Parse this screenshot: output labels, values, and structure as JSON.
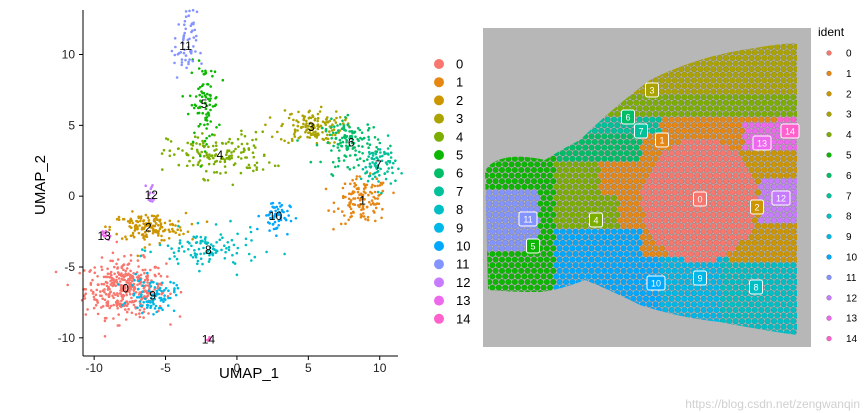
{
  "chart_data": [
    {
      "type": "scatter",
      "xlabel": "UMAP_1",
      "ylabel": "UMAP_2",
      "xlim": [
        -10.5,
        11
      ],
      "ylim": [
        -11,
        13
      ],
      "xticks": [
        "-10",
        "-5",
        "0",
        "5",
        "10"
      ],
      "yticks": [
        "-10",
        "-5",
        "0",
        "5",
        "10"
      ],
      "legend_position": "right",
      "clusters": [
        {
          "name": "0",
          "color": "#F8766D",
          "center": [
            -7.8,
            -6.5
          ],
          "spread": [
            1.4,
            1.0
          ],
          "n": 380
        },
        {
          "name": "1",
          "color": "#E68613",
          "center": [
            8.8,
            -0.3
          ],
          "spread": [
            0.9,
            0.8
          ],
          "n": 130
        },
        {
          "name": "2",
          "color": "#CD9600",
          "center": [
            -6.2,
            -2.2
          ],
          "spread": [
            1.3,
            0.5
          ],
          "n": 150
        },
        {
          "name": "3",
          "color": "#ABA300",
          "center": [
            5.2,
            4.9
          ],
          "spread": [
            1.1,
            0.6
          ],
          "n": 140
        },
        {
          "name": "4",
          "color": "#7CAE00",
          "center": [
            -1.2,
            2.9
          ],
          "spread": [
            1.8,
            0.8
          ],
          "n": 150
        },
        {
          "name": "5",
          "color": "#0CB702",
          "center": [
            -2.3,
            6.5
          ],
          "spread": [
            0.5,
            1.4
          ],
          "n": 90
        },
        {
          "name": "6",
          "color": "#00BE67",
          "center": [
            8.0,
            3.8
          ],
          "spread": [
            1.0,
            0.8
          ],
          "n": 130
        },
        {
          "name": "7",
          "color": "#00C19A",
          "center": [
            9.9,
            2.2
          ],
          "spread": [
            0.6,
            0.8
          ],
          "n": 80
        },
        {
          "name": "8",
          "color": "#00BFC4",
          "center": [
            -2.0,
            -3.8
          ],
          "spread": [
            1.8,
            0.7
          ],
          "n": 110
        },
        {
          "name": "9",
          "color": "#00B8E7",
          "center": [
            -5.9,
            -7.0
          ],
          "spread": [
            0.8,
            0.6
          ],
          "n": 90
        },
        {
          "name": "10",
          "color": "#00A9FF",
          "center": [
            2.7,
            -1.4
          ],
          "spread": [
            0.5,
            0.6
          ],
          "n": 60
        },
        {
          "name": "11",
          "color": "#8494FF",
          "center": [
            -3.6,
            10.6
          ],
          "spread": [
            0.4,
            1.2
          ],
          "n": 60
        },
        {
          "name": "12",
          "color": "#C77CFF",
          "center": [
            -6.0,
            0.1
          ],
          "spread": [
            0.15,
            0.4
          ],
          "n": 14
        },
        {
          "name": "13",
          "color": "#ED68ED",
          "center": [
            -9.3,
            -2.8
          ],
          "spread": [
            0.2,
            0.2
          ],
          "n": 10
        },
        {
          "name": "14",
          "color": "#FF61CC",
          "center": [
            -2.0,
            -10.1
          ],
          "spread": [
            0.1,
            0.1
          ],
          "n": 5
        }
      ]
    },
    {
      "type": "spatial",
      "legend_title": "ident",
      "legend_position": "right",
      "categories": [
        "0",
        "1",
        "2",
        "3",
        "4",
        "5",
        "6",
        "7",
        "8",
        "9",
        "10",
        "11",
        "12",
        "13",
        "14"
      ],
      "colors": [
        "#F8766D",
        "#E68613",
        "#CD9600",
        "#ABA300",
        "#7CAE00",
        "#0CB702",
        "#00BE67",
        "#00C19A",
        "#00BFC4",
        "#00B8E7",
        "#00A9FF",
        "#8494FF",
        "#C77CFF",
        "#ED68ED",
        "#FF61CC"
      ]
    }
  ],
  "left_legend": {
    "labels": [
      "0",
      "1",
      "2",
      "3",
      "4",
      "5",
      "6",
      "7",
      "8",
      "9",
      "10",
      "11",
      "12",
      "13",
      "14"
    ]
  },
  "watermark": "https://blog.csdn.net/zengwanqin"
}
